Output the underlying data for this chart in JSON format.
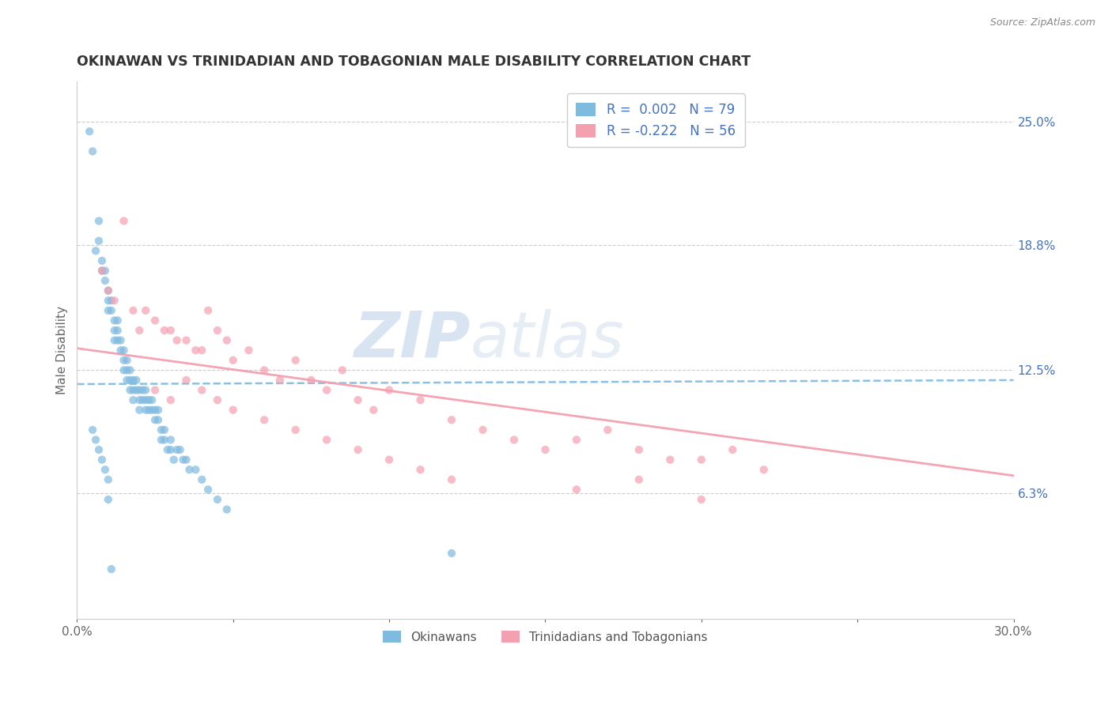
{
  "title": "OKINAWAN VS TRINIDADIAN AND TOBAGONIAN MALE DISABILITY CORRELATION CHART",
  "source": "Source: ZipAtlas.com",
  "ylabel": "Male Disability",
  "right_yticks": [
    0.0,
    0.063,
    0.125,
    0.188,
    0.25
  ],
  "right_yticklabels": [
    "",
    "6.3%",
    "12.5%",
    "18.8%",
    "25.0%"
  ],
  "xlim": [
    0.0,
    0.3
  ],
  "ylim": [
    0.0,
    0.27
  ],
  "xticks": [
    0.0,
    0.05,
    0.1,
    0.15,
    0.2,
    0.25,
    0.3
  ],
  "xticklabels": [
    "0.0%",
    "",
    "",
    "",
    "",
    "",
    "30.0%"
  ],
  "legend_labels": [
    "Okinawans",
    "Trinidadians and Tobagonians"
  ],
  "R_blue": 0.002,
  "N_blue": 79,
  "R_pink": -0.222,
  "N_pink": 56,
  "blue_color": "#7fbadf",
  "pink_color": "#f4a0b0",
  "watermark_zip": "ZIP",
  "watermark_atlas": "atlas",
  "blue_scatter_x": [
    0.004,
    0.005,
    0.006,
    0.007,
    0.007,
    0.008,
    0.008,
    0.009,
    0.009,
    0.01,
    0.01,
    0.01,
    0.011,
    0.011,
    0.012,
    0.012,
    0.012,
    0.013,
    0.013,
    0.013,
    0.014,
    0.014,
    0.015,
    0.015,
    0.015,
    0.016,
    0.016,
    0.016,
    0.017,
    0.017,
    0.017,
    0.018,
    0.018,
    0.018,
    0.019,
    0.019,
    0.02,
    0.02,
    0.02,
    0.021,
    0.021,
    0.022,
    0.022,
    0.022,
    0.023,
    0.023,
    0.024,
    0.024,
    0.025,
    0.025,
    0.026,
    0.026,
    0.027,
    0.027,
    0.028,
    0.028,
    0.029,
    0.03,
    0.03,
    0.031,
    0.032,
    0.033,
    0.034,
    0.035,
    0.036,
    0.038,
    0.04,
    0.042,
    0.045,
    0.048,
    0.005,
    0.006,
    0.007,
    0.008,
    0.009,
    0.01,
    0.12,
    0.01,
    0.011
  ],
  "blue_scatter_y": [
    0.245,
    0.235,
    0.185,
    0.2,
    0.19,
    0.18,
    0.175,
    0.175,
    0.17,
    0.165,
    0.16,
    0.155,
    0.16,
    0.155,
    0.15,
    0.145,
    0.14,
    0.15,
    0.145,
    0.14,
    0.14,
    0.135,
    0.135,
    0.13,
    0.125,
    0.13,
    0.125,
    0.12,
    0.125,
    0.12,
    0.115,
    0.12,
    0.115,
    0.11,
    0.12,
    0.115,
    0.115,
    0.11,
    0.105,
    0.115,
    0.11,
    0.115,
    0.11,
    0.105,
    0.11,
    0.105,
    0.11,
    0.105,
    0.105,
    0.1,
    0.105,
    0.1,
    0.095,
    0.09,
    0.095,
    0.09,
    0.085,
    0.09,
    0.085,
    0.08,
    0.085,
    0.085,
    0.08,
    0.08,
    0.075,
    0.075,
    0.07,
    0.065,
    0.06,
    0.055,
    0.095,
    0.09,
    0.085,
    0.08,
    0.075,
    0.07,
    0.033,
    0.06,
    0.025
  ],
  "pink_scatter_x": [
    0.008,
    0.01,
    0.012,
    0.015,
    0.018,
    0.02,
    0.022,
    0.025,
    0.028,
    0.03,
    0.032,
    0.035,
    0.038,
    0.04,
    0.042,
    0.045,
    0.048,
    0.05,
    0.055,
    0.06,
    0.065,
    0.07,
    0.075,
    0.08,
    0.085,
    0.09,
    0.095,
    0.1,
    0.11,
    0.12,
    0.13,
    0.14,
    0.15,
    0.16,
    0.17,
    0.18,
    0.19,
    0.2,
    0.21,
    0.22,
    0.025,
    0.03,
    0.035,
    0.04,
    0.045,
    0.05,
    0.06,
    0.07,
    0.08,
    0.09,
    0.1,
    0.11,
    0.12,
    0.16,
    0.18,
    0.2
  ],
  "pink_scatter_y": [
    0.175,
    0.165,
    0.16,
    0.2,
    0.155,
    0.145,
    0.155,
    0.15,
    0.145,
    0.145,
    0.14,
    0.14,
    0.135,
    0.135,
    0.155,
    0.145,
    0.14,
    0.13,
    0.135,
    0.125,
    0.12,
    0.13,
    0.12,
    0.115,
    0.125,
    0.11,
    0.105,
    0.115,
    0.11,
    0.1,
    0.095,
    0.09,
    0.085,
    0.09,
    0.095,
    0.085,
    0.08,
    0.08,
    0.085,
    0.075,
    0.115,
    0.11,
    0.12,
    0.115,
    0.11,
    0.105,
    0.1,
    0.095,
    0.09,
    0.085,
    0.08,
    0.075,
    0.07,
    0.065,
    0.07,
    0.06
  ],
  "blue_trend_x": [
    0.0,
    0.3
  ],
  "blue_trend_y": [
    0.118,
    0.12
  ],
  "pink_trend_x": [
    0.0,
    0.3
  ],
  "pink_trend_y": [
    0.136,
    0.072
  ]
}
